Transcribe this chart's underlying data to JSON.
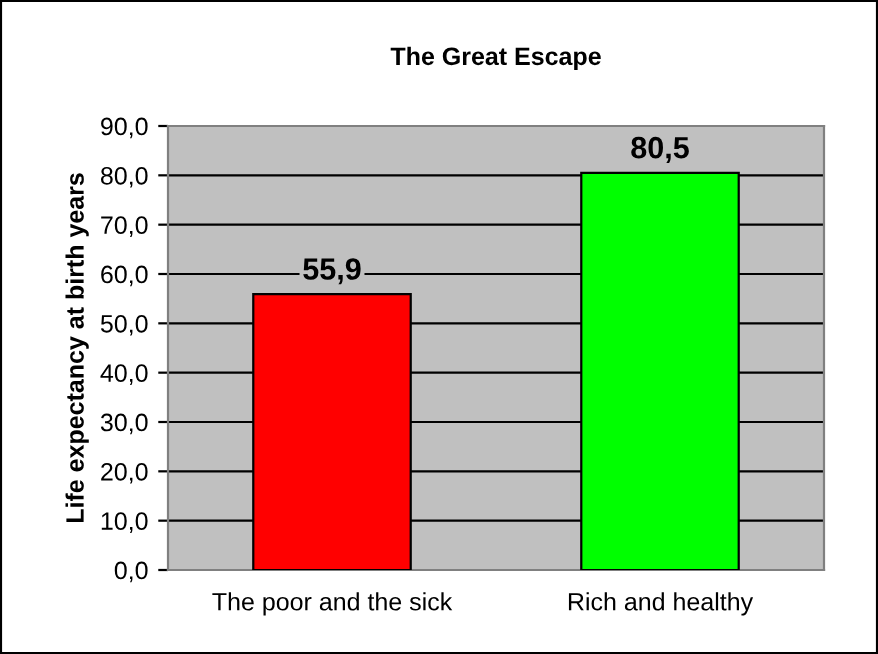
{
  "chart_data": {
    "type": "bar",
    "title": "The Great Escape",
    "ylabel": "Life expectancy at birth years",
    "categories": [
      "The poor and the sick",
      "Rich and healthy"
    ],
    "values": [
      55.9,
      80.5
    ],
    "colors": [
      "#ff0000",
      "#00ff00"
    ],
    "value_labels": [
      "55,9",
      "80,5"
    ],
    "ylim": [
      0,
      90
    ],
    "yticks": [
      {
        "value": 0,
        "label": "0,0"
      },
      {
        "value": 10,
        "label": "10,0"
      },
      {
        "value": 20,
        "label": "20,0"
      },
      {
        "value": 30,
        "label": "30,0"
      },
      {
        "value": 40,
        "label": "40,0"
      },
      {
        "value": 50,
        "label": "50,0"
      },
      {
        "value": 60,
        "label": "60,0"
      },
      {
        "value": 70,
        "label": "70,0"
      },
      {
        "value": 80,
        "label": "80,0"
      },
      {
        "value": 90,
        "label": "90,0"
      }
    ],
    "grid": "y"
  }
}
